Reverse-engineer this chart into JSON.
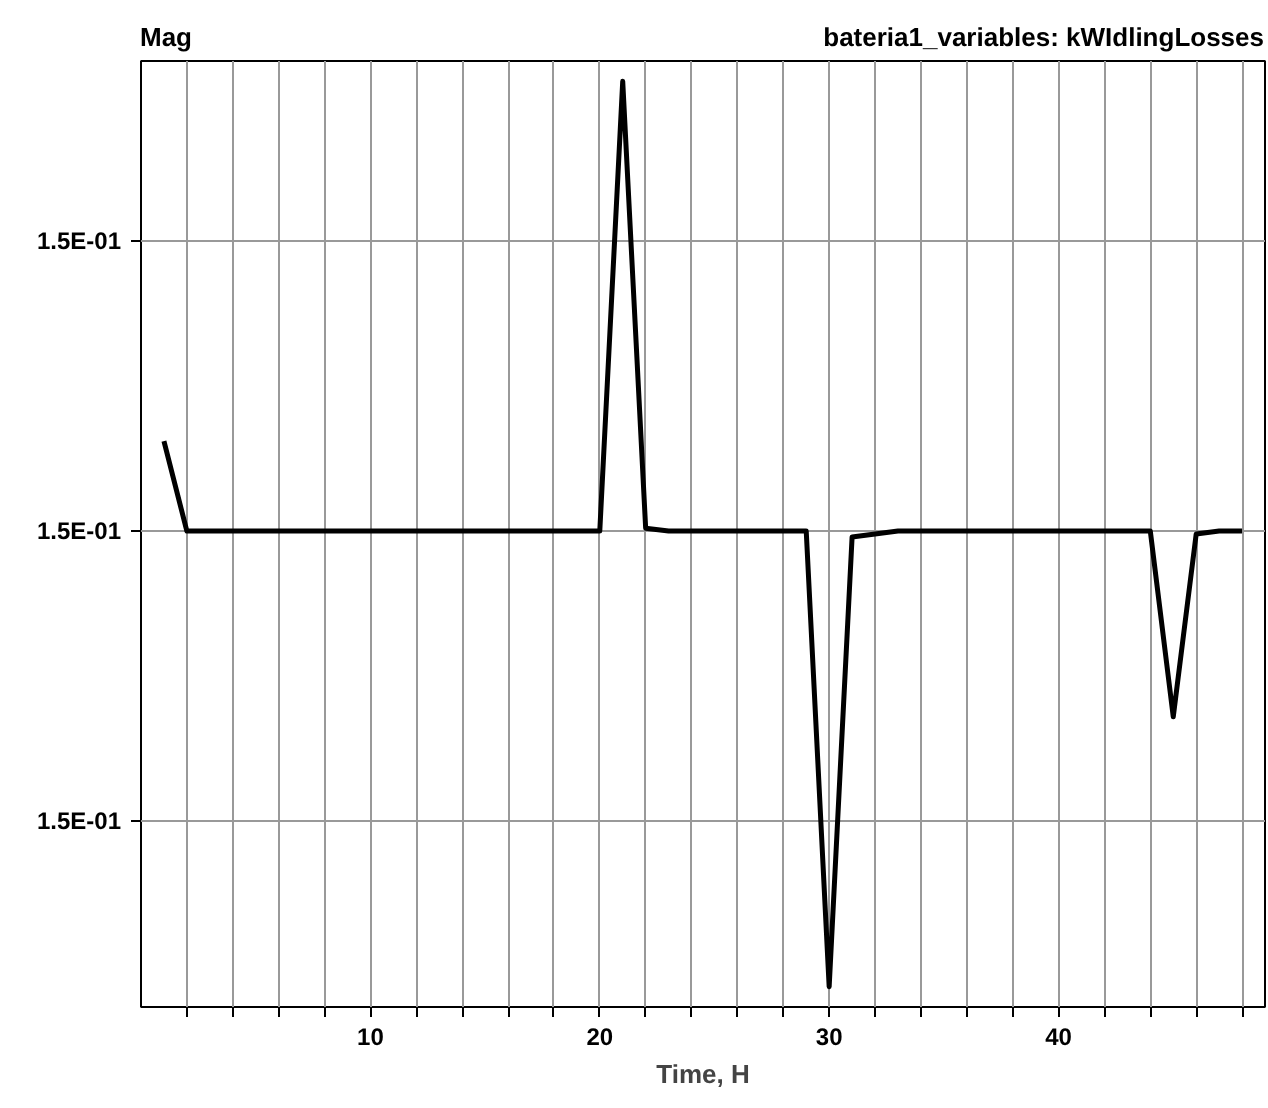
{
  "chart_data": {
    "type": "line",
    "title": "bateria1_variables: kWIdlingLosses",
    "xlabel": "Time, H",
    "ylabel": "Mag",
    "x": [
      1,
      2,
      3,
      4,
      5,
      6,
      7,
      8,
      9,
      10,
      11,
      12,
      13,
      14,
      15,
      16,
      17,
      18,
      19,
      20,
      21,
      22,
      23,
      24,
      25,
      26,
      27,
      28,
      29,
      30,
      31,
      32,
      33,
      34,
      35,
      36,
      37,
      38,
      39,
      40,
      41,
      42,
      43,
      44,
      45,
      46,
      47,
      48
    ],
    "series": [
      {
        "color": "#000000",
        "values": [
          0.150031,
          0.15,
          0.15,
          0.15,
          0.15,
          0.15,
          0.15,
          0.15,
          0.15,
          0.15,
          0.15,
          0.15,
          0.15,
          0.15,
          0.15,
          0.15,
          0.15,
          0.15,
          0.15,
          0.15,
          0.150155,
          0.150001,
          0.15,
          0.15,
          0.15,
          0.15,
          0.15,
          0.15,
          0.15,
          0.149843,
          0.149998,
          0.149999,
          0.15,
          0.15,
          0.15,
          0.15,
          0.15,
          0.15,
          0.15,
          0.15,
          0.15,
          0.15,
          0.15,
          0.15,
          0.149936,
          0.149999,
          0.15,
          0.15
        ]
      }
    ],
    "xlim": [
      0,
      49
    ],
    "xticks": [
      {
        "value": 2,
        "label": null
      },
      {
        "value": 4,
        "label": null
      },
      {
        "value": 6,
        "label": null
      },
      {
        "value": 8,
        "label": null
      },
      10,
      {
        "value": 12,
        "label": null
      },
      {
        "value": 14,
        "label": null
      },
      {
        "value": 16,
        "label": null
      },
      {
        "value": 18,
        "label": null
      },
      20,
      {
        "value": 22,
        "label": null
      },
      {
        "value": 24,
        "label": null
      },
      {
        "value": 26,
        "label": null
      },
      {
        "value": 28,
        "label": null
      },
      30,
      {
        "value": 32,
        "label": null
      },
      {
        "value": 34,
        "label": null
      },
      {
        "value": 36,
        "label": null
      },
      {
        "value": 38,
        "label": null
      },
      40,
      {
        "value": 42,
        "label": null
      },
      {
        "value": 44,
        "label": null
      },
      {
        "value": 46,
        "label": null
      },
      {
        "value": 48,
        "label": null
      }
    ],
    "ylim": [
      0.149836,
      0.150162
    ],
    "yticks": [
      {
        "value": 0.1499,
        "label": "1.5E-01"
      },
      {
        "value": 0.15,
        "label": "1.5E-01"
      },
      {
        "value": 0.1501,
        "label": "1.5E-01"
      }
    ],
    "grid": true,
    "marker": "none",
    "line_style": "solid"
  }
}
